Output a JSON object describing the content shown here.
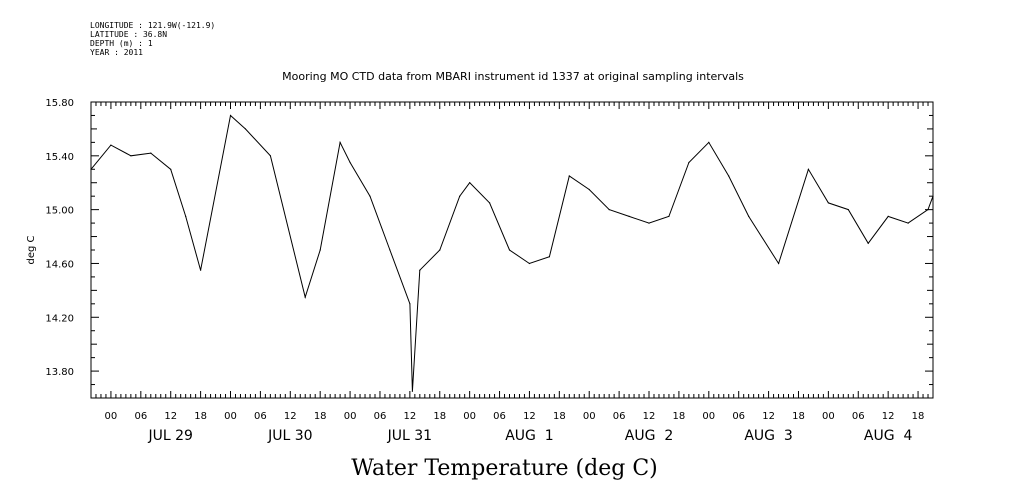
{
  "metadata": [
    {
      "label": "LONGITUDE",
      "value": "121.9W(-121.9)"
    },
    {
      "label": "LATITUDE",
      "value": "36.8N"
    },
    {
      "label": "DEPTH (m)",
      "value": "1"
    },
    {
      "label": "YEAR",
      "value": "2011"
    }
  ],
  "chart_data": {
    "type": "line",
    "title": "Mooring MO CTD data from MBARI instrument id 1337 at original sampling intervals",
    "subtitle": "",
    "xlabel": "Water Temperature (deg C)",
    "ylabel": "deg C",
    "grid": false,
    "ylim": [
      13.6,
      15.8
    ],
    "xlim": [
      "2011-07-28T20:00",
      "2011-08-04T21:00"
    ],
    "y_ticks": [
      "13.80",
      "14.20",
      "14.60",
      "15.00",
      "15.40",
      "15.80"
    ],
    "x_hour_ticks": [
      "00",
      "06",
      "12",
      "18",
      "00",
      "06",
      "12",
      "18",
      "00",
      "06",
      "12",
      "18",
      "00",
      "06",
      "12",
      "18",
      "00",
      "06",
      "12",
      "18",
      "00",
      "06",
      "12",
      "18",
      "00",
      "06",
      "12",
      "18"
    ],
    "x_day_labels": [
      "JUL 29",
      "JUL 30",
      "JUL 31",
      "AUG  1",
      "AUG  2",
      "AUG  3",
      "AUG  4"
    ],
    "series": [
      {
        "x": [
          "2011-07-28T20:00",
          "2011-07-29T00:00",
          "2011-07-29T04:00",
          "2011-07-29T08:00",
          "2011-07-29T12:00",
          "2011-07-29T15:00",
          "2011-07-29T18:00",
          "2011-07-30T00:00",
          "2011-07-30T03:00",
          "2011-07-30T08:00",
          "2011-07-30T15:00",
          "2011-07-30T18:00",
          "2011-07-30T22:00",
          "2011-07-31T00:00",
          "2011-07-31T04:00",
          "2011-07-31T08:00",
          "2011-07-31T12:00",
          "2011-07-31T12:30",
          "2011-07-31T14:00",
          "2011-07-31T18:00",
          "2011-07-31T22:00",
          "2011-08-01T00:00",
          "2011-08-01T04:00",
          "2011-08-01T08:00",
          "2011-08-01T12:00",
          "2011-08-01T16:00",
          "2011-08-01T20:00",
          "2011-08-02T00:00",
          "2011-08-02T04:00",
          "2011-08-02T08:00",
          "2011-08-02T12:00",
          "2011-08-02T16:00",
          "2011-08-02T20:00",
          "2011-08-03T00:00",
          "2011-08-03T04:00",
          "2011-08-03T08:00",
          "2011-08-03T14:00",
          "2011-08-03T20:00",
          "2011-08-04T00:00",
          "2011-08-04T04:00",
          "2011-08-04T08:00",
          "2011-08-04T12:00",
          "2011-08-04T16:00",
          "2011-08-04T20:00",
          "2011-08-04T21:00"
        ],
        "values": [
          15.3,
          15.48,
          15.4,
          15.42,
          15.3,
          14.95,
          14.55,
          15.7,
          15.6,
          15.4,
          14.35,
          14.7,
          15.5,
          15.35,
          15.1,
          14.7,
          14.3,
          13.65,
          14.55,
          14.7,
          15.1,
          15.2,
          15.05,
          14.7,
          14.6,
          14.65,
          15.25,
          15.15,
          15.0,
          14.95,
          14.9,
          14.95,
          15.35,
          15.5,
          15.25,
          14.95,
          14.6,
          15.3,
          15.05,
          15.0,
          14.75,
          14.95,
          14.9,
          15.0,
          15.1
        ]
      }
    ]
  }
}
